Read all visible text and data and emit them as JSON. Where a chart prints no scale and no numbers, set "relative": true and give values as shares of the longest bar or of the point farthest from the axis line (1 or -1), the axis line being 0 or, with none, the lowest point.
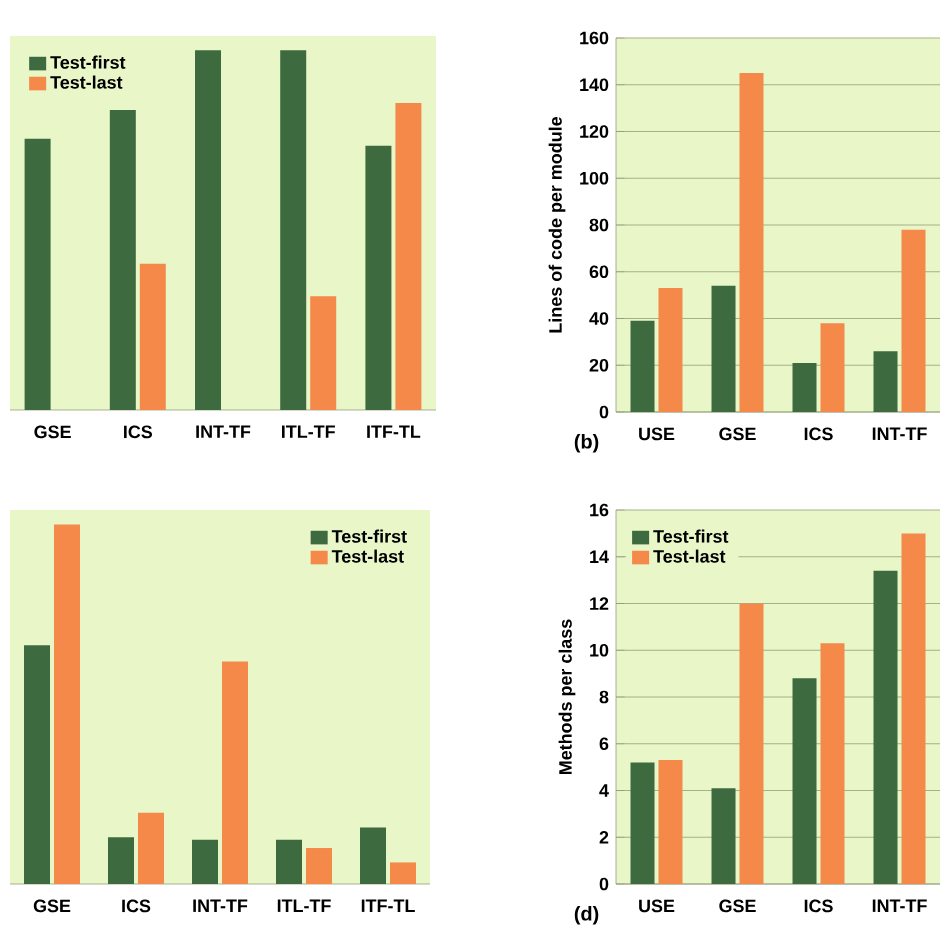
{
  "chart_data": [
    {
      "type": "bar",
      "relative": true,
      "legend": "top left",
      "categories": [
        "GSE",
        "ICS",
        "INT-TF",
        "ITL-TF",
        "ITF-TL"
      ],
      "series": [
        {
          "name": "Test-first",
          "color": "#3d6b3f",
          "values": [
            0.754,
            0.834,
            1,
            1,
            0.735
          ]
        },
        {
          "name": "Test-last",
          "color": "#f4894a",
          "values": [
            null,
            0.407,
            null,
            0.316,
            0.854
          ]
        }
      ]
    },
    {
      "type": "bar",
      "ylabel": "Lines of code per module",
      "annotations": [
        "(b)"
      ],
      "ylim": [
        0,
        160
      ],
      "yticks": [
        0,
        20,
        40,
        60,
        80,
        100,
        120,
        140,
        160
      ],
      "grid": "y",
      "categories": [
        "USE",
        "GSE",
        "ICS",
        "INT-TF"
      ],
      "series": [
        {
          "color": "#3d6b3f",
          "values": [
            39,
            54,
            21,
            26
          ]
        },
        {
          "color": "#f4894a",
          "values": [
            53,
            145,
            38,
            78
          ]
        }
      ]
    },
    {
      "type": "bar",
      "relative": true,
      "legend": "top right",
      "categories": [
        "GSE",
        "ICS",
        "INT-TF",
        "ITL-TF",
        "ITF-TL"
      ],
      "series": [
        {
          "name": "Test-first",
          "color": "#3d6b3f",
          "values": [
            0.664,
            0.13,
            0.123,
            0.123,
            0.157
          ]
        },
        {
          "name": "Test-last",
          "color": "#f4894a",
          "values": [
            1,
            0.198,
            0.619,
            0.1,
            0.06
          ]
        }
      ]
    },
    {
      "type": "bar",
      "ylabel": "Methods per class",
      "annotations": [
        "(d)"
      ],
      "ylim": [
        0,
        16
      ],
      "yticks": [
        0,
        2,
        4,
        6,
        8,
        10,
        12,
        14,
        16
      ],
      "grid": "y",
      "legend": "top left",
      "categories": [
        "USE",
        "GSE",
        "ICS",
        "INT-TF"
      ],
      "series": [
        {
          "name": "Test-first",
          "color": "#3d6b3f",
          "values": [
            5.2,
            4.1,
            8.8,
            13.4
          ]
        },
        {
          "name": "Test-last",
          "color": "#f4894a",
          "values": [
            5.3,
            12.0,
            10.3,
            15.0
          ]
        }
      ]
    }
  ]
}
